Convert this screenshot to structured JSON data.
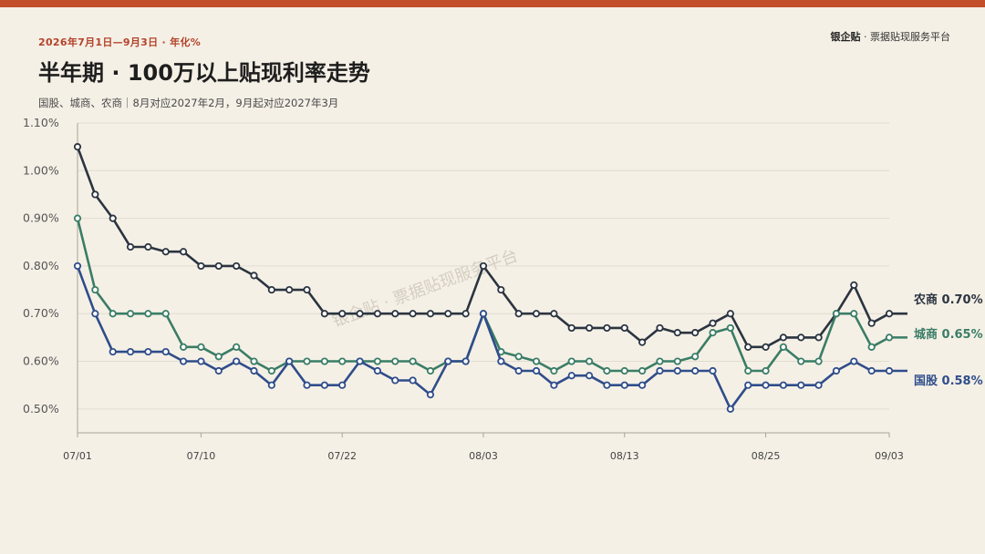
{
  "header": {
    "date_range": "2026年7月1日—9月3日 · 年化%",
    "title": "半年期 · 100万以上贴现利率走势",
    "note": "国股、城商、农商｜8月对应2027年2月，9月起对应2027年3月",
    "brand_name": "银企贴",
    "brand_suffix": " · 票据贴现服务平台"
  },
  "watermark": "银企贴 · 票据贴现服务平台",
  "colors": {
    "accent": "#c24e2a",
    "nongshang": "#2b3440",
    "chengshang": "#3a7d66",
    "guogu": "#2f4d8a"
  },
  "chart_data": {
    "type": "line",
    "title": "半年期 · 100万以上贴现利率走势",
    "x_ticks": [
      "07/01",
      "07/10",
      "07/22",
      "08/03",
      "08/13",
      "08/25",
      "09/03"
    ],
    "x_tick_index": [
      0,
      7,
      15,
      23,
      31,
      39,
      46
    ],
    "ylim": [
      0.45,
      1.1
    ],
    "y_ticks": [
      "1.10%",
      "1.00%",
      "0.90%",
      "0.80%",
      "0.70%",
      "0.60%",
      "0.50%"
    ],
    "y_tick_values": [
      1.1,
      1.0,
      0.9,
      0.8,
      0.7,
      0.6,
      0.5
    ],
    "grid": true,
    "series": [
      {
        "name": "农商",
        "end_label": "农商 0.70%",
        "color": "#2b3440",
        "values": [
          1.05,
          0.95,
          0.9,
          0.84,
          0.84,
          0.83,
          0.83,
          0.8,
          0.8,
          0.8,
          0.78,
          0.75,
          0.75,
          0.75,
          0.7,
          0.7,
          0.7,
          0.7,
          0.7,
          0.7,
          0.7,
          0.7,
          0.7,
          0.8,
          0.75,
          0.7,
          0.7,
          0.7,
          0.67,
          0.67,
          0.67,
          0.67,
          0.64,
          0.67,
          0.66,
          0.66,
          0.68,
          0.7,
          0.63,
          0.63,
          0.65,
          0.65,
          0.65,
          0.7,
          0.76,
          0.68,
          0.7
        ]
      },
      {
        "name": "城商",
        "end_label": "城商 0.65%",
        "color": "#3a7d66",
        "values": [
          0.9,
          0.75,
          0.7,
          0.7,
          0.7,
          0.7,
          0.63,
          0.63,
          0.61,
          0.63,
          0.6,
          0.58,
          0.6,
          0.6,
          0.6,
          0.6,
          0.6,
          0.6,
          0.6,
          0.6,
          0.58,
          0.6,
          0.6,
          0.7,
          0.62,
          0.61,
          0.6,
          0.58,
          0.6,
          0.6,
          0.58,
          0.58,
          0.58,
          0.6,
          0.6,
          0.61,
          0.66,
          0.67,
          0.58,
          0.58,
          0.63,
          0.6,
          0.6,
          0.7,
          0.7,
          0.63,
          0.65
        ]
      },
      {
        "name": "国股",
        "end_label": "国股 0.58%",
        "color": "#2f4d8a",
        "values": [
          0.8,
          0.7,
          0.62,
          0.62,
          0.62,
          0.62,
          0.6,
          0.6,
          0.58,
          0.6,
          0.58,
          0.55,
          0.6,
          0.55,
          0.55,
          0.55,
          0.6,
          0.58,
          0.56,
          0.56,
          0.53,
          0.6,
          0.6,
          0.7,
          0.6,
          0.58,
          0.58,
          0.55,
          0.57,
          0.57,
          0.55,
          0.55,
          0.55,
          0.58,
          0.58,
          0.58,
          0.58,
          0.5,
          0.55,
          0.55,
          0.55,
          0.55,
          0.55,
          0.58,
          0.6,
          0.58,
          0.58
        ]
      }
    ]
  }
}
